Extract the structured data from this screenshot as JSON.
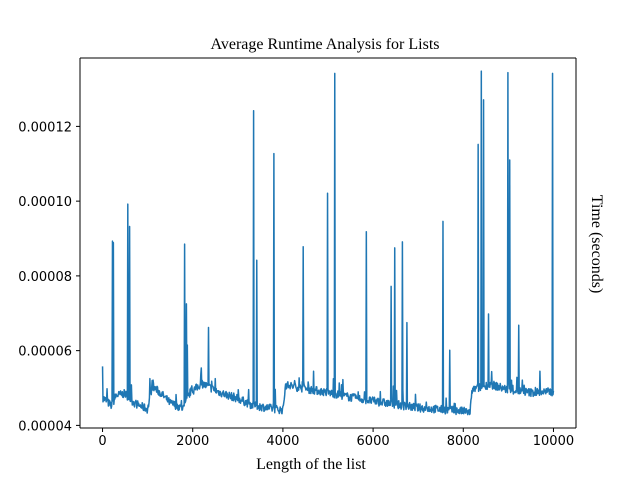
{
  "chart_data": {
    "type": "line",
    "title": "Average Runtime Analysis for Lists",
    "xlabel": "Length of the list",
    "ylabel": "Time (seconds)",
    "xlim": [
      -500,
      10500
    ],
    "ylim": [
      3.93e-05,
      0.0001383
    ],
    "x_ticks": [
      0,
      2000,
      4000,
      6000,
      8000,
      10000
    ],
    "x_tick_labels": [
      "0",
      "2000",
      "4000",
      "6000",
      "8000",
      "10000"
    ],
    "y_ticks": [
      4e-05,
      6e-05,
      8e-05,
      0.0001,
      0.00012
    ],
    "y_tick_labels": [
      "0.00004",
      "0.00006",
      "0.00008",
      "0.00010",
      "0.00012"
    ],
    "grid": false,
    "legend": "none",
    "line_color": "#1f77b4",
    "series": [
      {
        "x_start": 0,
        "x_step": 10,
        "baseline": [
          [
            0,
            4.75e-05
          ],
          [
            200,
            4.52e-05
          ],
          [
            300,
            4.8e-05
          ],
          [
            500,
            4.85e-05
          ],
          [
            700,
            4.6e-05
          ],
          [
            1000,
            4.43e-05
          ],
          [
            1100,
            5.05e-05
          ],
          [
            1300,
            4.85e-05
          ],
          [
            1500,
            4.6e-05
          ],
          [
            1800,
            4.45e-05
          ],
          [
            1950,
            4.9e-05
          ],
          [
            2000,
            4.92e-05
          ],
          [
            2200,
            5.12e-05
          ],
          [
            2600,
            4.88e-05
          ],
          [
            3000,
            4.72e-05
          ],
          [
            3300,
            4.55e-05
          ],
          [
            3600,
            4.48e-05
          ],
          [
            4000,
            4.41e-05
          ],
          [
            4060,
            5.08e-05
          ],
          [
            4500,
            4.98e-05
          ],
          [
            5000,
            4.88e-05
          ],
          [
            5500,
            4.75e-05
          ],
          [
            6000,
            4.65e-05
          ],
          [
            7000,
            4.47e-05
          ],
          [
            8000,
            4.38e-05
          ],
          [
            8150,
            4.35e-05
          ],
          [
            8200,
            4.95e-05
          ],
          [
            8600,
            5.1e-05
          ],
          [
            9000,
            4.95e-05
          ],
          [
            9500,
            4.88e-05
          ],
          [
            10000,
            4.9e-05
          ]
        ],
        "spikes": [
          [
            0,
            5.58e-05
          ],
          [
            100,
            4.98e-05
          ],
          [
            220,
            8.93e-05
          ],
          [
            240,
            8.89e-05
          ],
          [
            560,
            9.92e-05
          ],
          [
            600,
            9.32e-05
          ],
          [
            1050,
            5.25e-05
          ],
          [
            1820,
            8.85e-05
          ],
          [
            1860,
            7.25e-05
          ],
          [
            1880,
            6.15e-05
          ],
          [
            2350,
            6.62e-05
          ],
          [
            2500,
            5.25e-05
          ],
          [
            3350,
            0.0001242
          ],
          [
            3420,
            8.42e-05
          ],
          [
            3800,
            0.0001127
          ],
          [
            4450,
            8.78e-05
          ],
          [
            4990,
            0.0001021
          ],
          [
            5150,
            0.0001342
          ],
          [
            5850,
            9.18e-05
          ],
          [
            6400,
            7.72e-05
          ],
          [
            6480,
            8.75e-05
          ],
          [
            6650,
            8.91e-05
          ],
          [
            6750,
            6.75e-05
          ],
          [
            7550,
            9.46e-05
          ],
          [
            7700,
            6.01e-05
          ],
          [
            8330,
            0.0001152
          ],
          [
            8400,
            0.0001348
          ],
          [
            8450,
            0.0001271
          ],
          [
            8560,
            6.98e-05
          ],
          [
            8990,
            0.0001344
          ],
          [
            9030,
            0.000111
          ],
          [
            9230,
            6.68e-05
          ],
          [
            9700,
            5.45e-05
          ],
          [
            9980,
            0.0001342
          ]
        ]
      }
    ]
  }
}
